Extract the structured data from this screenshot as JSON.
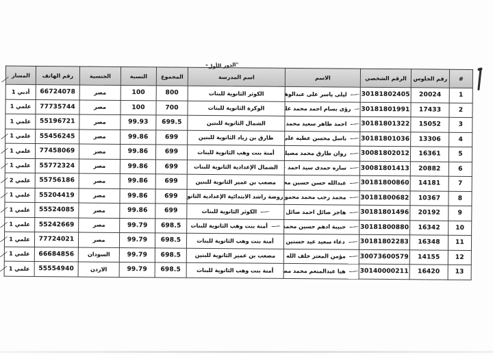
{
  "page": {
    "fragment_title": "\"الدور الأول\""
  },
  "table": {
    "columns": [
      {
        "key": "index",
        "label": "#"
      },
      {
        "key": "seat",
        "label": "رقم الجلوس"
      },
      {
        "key": "national_id",
        "label": "الرقم الشخصي"
      },
      {
        "key": "name",
        "label": "الاسم"
      },
      {
        "key": "school",
        "label": "اسم المدرسة"
      },
      {
        "key": "total",
        "label": "المجموع"
      },
      {
        "key": "percent",
        "label": "النسبة"
      },
      {
        "key": "nationality",
        "label": "الجنسية"
      },
      {
        "key": "phone",
        "label": "رقم الهاتف"
      },
      {
        "key": "track",
        "label": "المسار"
      }
    ],
    "rows": [
      {
        "index": "1",
        "seat": "20024",
        "national_id": "30181802405",
        "name": "ليلى ياسر على عبدالوهاب الشمسي",
        "school": "الكوثر الثانوية للبنات",
        "total": "800",
        "percent": "100",
        "nationality": "مصر",
        "phone": "66724078",
        "track": "أدبي 1",
        "name_dash": true,
        "school_dash": false
      },
      {
        "index": "2",
        "seat": "17433",
        "national_id": "30181801991",
        "name": "رؤى بسام احمد محمد علي",
        "school": "الوكرة الثانوية للبنات",
        "total": "700",
        "percent": "100",
        "nationality": "مصر",
        "phone": "77735744",
        "track": "علمي 1",
        "name_dash": true,
        "name_dash_short": true,
        "school_dash": false
      },
      {
        "index": "3",
        "seat": "15052",
        "national_id": "30181801322",
        "name": "احمد طاهر سعيد محمد شرويه",
        "school": "الشمال الثانوية للبنين",
        "total": "699.5",
        "percent": "99.93",
        "nationality": "مصر",
        "phone": "55196721",
        "track": "علمي 1",
        "name_dash": true,
        "school_dash": false
      },
      {
        "index": "4",
        "seat": "13306",
        "national_id": "30181801036",
        "name": "باسل محسن عطيه على السيد",
        "school": "طارق بن زياد الثانوية للبنين",
        "total": "699",
        "percent": "99.86",
        "nationality": "مصر",
        "phone": "55456245",
        "track": "علمي 1",
        "name_dash": true,
        "school_dash": false
      },
      {
        "index": "5",
        "seat": "16361",
        "national_id": "30081802012",
        "name": "روان طارق محمد مصيلحي",
        "school": "أمنة بنت وهب الثانوية للبنات",
        "total": "699",
        "percent": "99.86",
        "nationality": "مصر",
        "phone": "77458069",
        "track": "علمي 1",
        "name_dash": true,
        "school_dash": false
      },
      {
        "index": "6",
        "seat": "20882",
        "national_id": "30081801413",
        "name": "ساره حمدى سيد احمد حسين",
        "school": "الشمال الإعدادية الثانوية للبنات",
        "total": "699",
        "percent": "99.86",
        "nationality": "مصر",
        "phone": "55772324",
        "track": "علمي 1",
        "name_dash": true,
        "school_dash": false
      },
      {
        "index": "7",
        "seat": "14181",
        "national_id": "30181800860",
        "name": "عبدالله حسن حسين محمد",
        "school": "مصعب بن عمير الثانوية للبنين",
        "total": "699",
        "percent": "99.86",
        "nationality": "مصر",
        "phone": "55756186",
        "track": "علمي 2",
        "name_dash": true,
        "school_dash": false
      },
      {
        "index": "8",
        "seat": "10367",
        "national_id": "30181800682",
        "name": "محمد رجب محمد محمود الحضرى",
        "school": "روضة راشد الابتدائية الإعدادية الثانوية للبنين",
        "total": "699",
        "percent": "99.86",
        "nationality": "مصر",
        "phone": "55204419",
        "track": "علمي 1",
        "name_dash": true,
        "school_dash": false
      },
      {
        "index": "9",
        "seat": "20192",
        "national_id": "30181801496",
        "name": "هاجر صائل احمد صائل مسعودة",
        "school": "الكوثر الثانوية للبنات",
        "total": "699",
        "percent": "99.86",
        "nationality": "مصر",
        "phone": "55524085",
        "track": "علمي 1",
        "name_dash": true,
        "school_dash": true
      },
      {
        "index": "10",
        "seat": "16342",
        "national_id": "30181800880",
        "name": "حبيبة ادهم حسين محمد حسين",
        "school": "أمنة بنت وهب الثانوية للبنات",
        "total": "698.5",
        "percent": "99.79",
        "nationality": "مصر",
        "phone": "55242669",
        "track": "علمي 1",
        "name_dash": true,
        "school_dash": true
      },
      {
        "index": "11",
        "seat": "16348",
        "national_id": "30181802283",
        "name": "دعاء سعيد عيد حسنين",
        "school": "أمنة بنت وهب الثانوية للبنات",
        "total": "698.5",
        "percent": "99.79",
        "nationality": "مصر",
        "phone": "77724021",
        "track": "علمي 1",
        "name_dash": true,
        "school_dash": false
      },
      {
        "index": "12",
        "seat": "14155",
        "national_id": "30073600579",
        "name": "مؤمن المعتز خلف الله ابراهيم القريش",
        "school": "مصعب بن عمير الثانوية للبنين",
        "total": "698.5",
        "percent": "99.79",
        "nationality": "السودان",
        "phone": "66684856",
        "track": "علمي 1",
        "name_dash": true,
        "school_dash": false
      },
      {
        "index": "13",
        "seat": "16420",
        "national_id": "30140000211",
        "name": "هيا عبدالمنعم محمد مصلح",
        "school": "أمنة بنت وهب الثانوية للبنات",
        "total": "698.5",
        "percent": "99.79",
        "nationality": "الاردن",
        "phone": "55554940",
        "track": "علمي 1",
        "name_dash": true,
        "school_dash": false
      }
    ]
  },
  "annotations": {
    "pen_stroke_icon": "vertical-pen-stroke",
    "name_dash_icon": "handwritten-dash-mark",
    "left_tick_icon": "handwritten-check-tick",
    "left_tick_rows": [
      0,
      4,
      5,
      6,
      7,
      8,
      9,
      10,
      11,
      12,
      13
    ]
  },
  "colors": {
    "header_bg": "#cfcfcf",
    "border": "#3c3c3c",
    "ink": "#1a1a1a",
    "paper": "#ffffff"
  }
}
